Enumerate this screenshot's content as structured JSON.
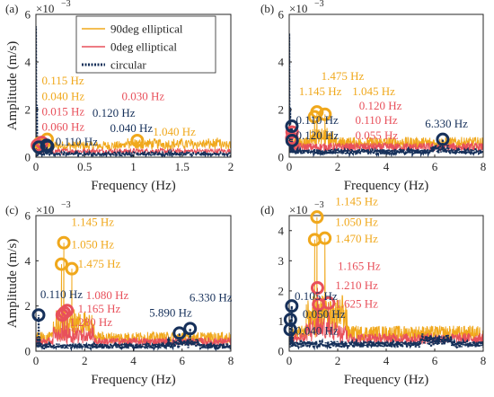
{
  "legend": {
    "entries": [
      {
        "label": "90deg elliptical",
        "color": "#F0A81C",
        "dash": false
      },
      {
        "label": "0deg elliptical",
        "color": "#E8505B",
        "dash": false
      },
      {
        "label": "circular",
        "color": "#16305A",
        "dash": true
      }
    ]
  },
  "colors": {
    "ell90": "#F0A81C",
    "ell0": "#E8505B",
    "circ": "#16305A",
    "axis": "#262626"
  },
  "chart_data": [
    {
      "panel": "(a)",
      "type": "line",
      "xlabel": "Frequency (Hz)",
      "ylabel": "Amplitude (m/s)",
      "exponent": "×10",
      "exponent_power": "−3",
      "xlim": [
        0,
        2
      ],
      "ylim": [
        0,
        6
      ],
      "xticks": [
        0,
        0.5,
        1,
        1.5,
        2
      ],
      "xtick_labels": [
        "0",
        "0.5",
        "1",
        "1.5",
        "2"
      ],
      "yticks": [
        0,
        2,
        4,
        6
      ],
      "ytick_labels": [
        "0",
        "2",
        "4",
        "6"
      ],
      "markers": [
        {
          "series": "ell90",
          "x": 0.115,
          "y": 0.75
        },
        {
          "series": "ell90",
          "x": 0.04,
          "y": 0.6
        },
        {
          "series": "ell90",
          "x": 1.04,
          "y": 0.7
        },
        {
          "series": "ell0",
          "x": 0.015,
          "y": 0.5
        },
        {
          "series": "ell0",
          "x": 0.06,
          "y": 0.62
        },
        {
          "series": "circ",
          "x": 0.03,
          "y": 0.42
        },
        {
          "series": "circ",
          "x": 0.11,
          "y": 0.5
        },
        {
          "series": "circ",
          "x": 0.12,
          "y": 0.45
        }
      ],
      "annotations": [
        {
          "series": "ell90",
          "text": "0.115 Hz",
          "x": 0.06,
          "y": 3.05
        },
        {
          "series": "ell90",
          "text": "0.040 Hz",
          "x": 0.06,
          "y": 2.4
        },
        {
          "series": "ell0",
          "text": "0.015 Hz",
          "x": 0.06,
          "y": 1.75
        },
        {
          "series": "ell0",
          "text": "0.060 Hz",
          "x": 0.06,
          "y": 1.12
        },
        {
          "series": "circ",
          "text": "0.110 Hz",
          "x": 0.2,
          "y": 0.5
        },
        {
          "series": "ell0",
          "text": "0.030 Hz",
          "x": 0.88,
          "y": 2.4
        },
        {
          "series": "circ",
          "text": "0.120 Hz",
          "x": 0.58,
          "y": 1.7
        },
        {
          "series": "circ",
          "text": "0.040 Hz",
          "x": 0.76,
          "y": 1.05
        },
        {
          "series": "ell90",
          "text": "1.040 Hz",
          "x": 1.2,
          "y": 0.9
        }
      ],
      "peaks": {
        "ell90": [
          [
            0.04,
            0.6
          ],
          [
            0.115,
            0.75
          ],
          [
            1.04,
            0.7
          ]
        ],
        "ell0": [
          [
            0.015,
            0.5
          ],
          [
            0.06,
            0.62
          ]
        ],
        "circ": [
          [
            0.0,
            5.5
          ],
          [
            0.03,
            0.42
          ],
          [
            0.11,
            0.5
          ]
        ]
      }
    },
    {
      "panel": "(b)",
      "type": "line",
      "xlabel": "Frequency (Hz)",
      "ylabel": "",
      "exponent": "×10",
      "exponent_power": "−3",
      "xlim": [
        0,
        8
      ],
      "ylim": [
        0,
        6
      ],
      "xticks": [
        0,
        2,
        4,
        6,
        8
      ],
      "xtick_labels": [
        "0",
        "2",
        "4",
        "6",
        "8"
      ],
      "yticks": [
        0,
        2,
        4,
        6
      ],
      "ytick_labels": [
        "0",
        "2",
        "4",
        "6"
      ],
      "markers": [
        {
          "series": "ell90",
          "x": 1.475,
          "y": 1.8
        },
        {
          "series": "ell90",
          "x": 1.145,
          "y": 1.9
        },
        {
          "series": "ell90",
          "x": 1.045,
          "y": 1.7
        },
        {
          "series": "ell0",
          "x": 0.12,
          "y": 1.05
        },
        {
          "series": "ell0",
          "x": 0.11,
          "y": 0.8
        },
        {
          "series": "circ",
          "x": 0.11,
          "y": 1.3
        },
        {
          "series": "circ",
          "x": 0.12,
          "y": 0.7
        },
        {
          "series": "circ",
          "x": 6.33,
          "y": 0.75
        }
      ],
      "annotations": [
        {
          "series": "ell90",
          "text": "1.475 Hz",
          "x": 1.32,
          "y": 3.25
        },
        {
          "series": "ell90",
          "text": "1.145 Hz",
          "x": 0.4,
          "y": 2.6
        },
        {
          "series": "ell90",
          "text": "1.045 Hz",
          "x": 2.6,
          "y": 2.6
        },
        {
          "series": "ell0",
          "text": "0.120 Hz",
          "x": 2.88,
          "y": 2.0
        },
        {
          "series": "circ",
          "text": "0.110 Hz",
          "x": 0.28,
          "y": 1.4
        },
        {
          "series": "ell0",
          "text": "0.110 Hz",
          "x": 2.72,
          "y": 1.4
        },
        {
          "series": "circ",
          "text": "0.120 Hz",
          "x": 0.28,
          "y": 0.75
        },
        {
          "series": "ell0",
          "text": "0.055 Hz",
          "x": 2.72,
          "y": 0.75
        },
        {
          "series": "circ",
          "text": "6.330 Hz",
          "x": 5.6,
          "y": 1.25
        }
      ],
      "peaks": {
        "ell90": [
          [
            1.045,
            1.7
          ],
          [
            1.145,
            1.9
          ],
          [
            1.475,
            1.8
          ]
        ],
        "ell0": [
          [
            0.11,
            0.8
          ],
          [
            0.12,
            1.05
          ]
        ],
        "circ": [
          [
            0.0,
            5.2
          ],
          [
            0.11,
            1.3
          ],
          [
            6.33,
            0.75
          ]
        ]
      }
    },
    {
      "panel": "(c)",
      "type": "line",
      "xlabel": "Frequency (Hz)",
      "ylabel": "Amplitude (m/s)",
      "exponent": "×10",
      "exponent_power": "−3",
      "xlim": [
        0,
        8
      ],
      "ylim": [
        0,
        6
      ],
      "xticks": [
        0,
        2,
        4,
        6,
        8
      ],
      "xtick_labels": [
        "0",
        "2",
        "4",
        "6",
        "8"
      ],
      "yticks": [
        0,
        2,
        4,
        6
      ],
      "ytick_labels": [
        "0",
        "2",
        "4",
        "6"
      ],
      "markers": [
        {
          "series": "ell90",
          "x": 1.145,
          "y": 4.8
        },
        {
          "series": "ell90",
          "x": 1.05,
          "y": 3.85
        },
        {
          "series": "ell90",
          "x": 1.475,
          "y": 3.65
        },
        {
          "series": "ell0",
          "x": 1.08,
          "y": 1.6
        },
        {
          "series": "ell0",
          "x": 1.165,
          "y": 1.7
        },
        {
          "series": "ell0",
          "x": 1.28,
          "y": 1.8
        },
        {
          "series": "circ",
          "x": 0.11,
          "y": 1.6
        },
        {
          "series": "circ",
          "x": 5.89,
          "y": 0.8
        },
        {
          "series": "circ",
          "x": 6.33,
          "y": 1.0
        }
      ],
      "annotations": [
        {
          "series": "ell90",
          "text": "1.145 Hz",
          "x": 1.45,
          "y": 5.55
        },
        {
          "series": "ell90",
          "text": "1.050 Hz",
          "x": 1.45,
          "y": 4.55
        },
        {
          "series": "ell90",
          "text": "1.475 Hz",
          "x": 1.72,
          "y": 3.7
        },
        {
          "series": "circ",
          "text": "0.110 Hz",
          "x": 0.18,
          "y": 2.35
        },
        {
          "series": "ell0",
          "text": "1.080 Hz",
          "x": 2.05,
          "y": 2.3
        },
        {
          "series": "ell0",
          "text": "1.165 Hz",
          "x": 1.72,
          "y": 1.7
        },
        {
          "series": "ell0",
          "text": "1.280 Hz",
          "x": 1.38,
          "y": 1.12
        },
        {
          "series": "circ",
          "text": "6.330 Hz",
          "x": 6.3,
          "y": 2.2
        },
        {
          "series": "circ",
          "text": "5.890 Hz",
          "x": 4.65,
          "y": 1.52
        }
      ],
      "peaks": {
        "ell90": [
          [
            1.05,
            3.85
          ],
          [
            1.145,
            4.8
          ],
          [
            1.475,
            3.65
          ]
        ],
        "ell0": [
          [
            1.08,
            1.6
          ],
          [
            1.165,
            1.7
          ],
          [
            1.28,
            1.8
          ]
        ],
        "circ": [
          [
            0.11,
            1.6
          ],
          [
            5.89,
            0.8
          ],
          [
            6.33,
            1.0
          ]
        ]
      }
    },
    {
      "panel": "(d)",
      "type": "line",
      "xlabel": "Frequency (Hz)",
      "ylabel": "",
      "exponent": "×10",
      "exponent_power": "−3",
      "xlim": [
        0,
        8
      ],
      "ylim": [
        0,
        4.5
      ],
      "xticks": [
        0,
        2,
        4,
        6,
        8
      ],
      "xtick_labels": [
        "0",
        "2",
        "4",
        "6",
        "8"
      ],
      "yticks": [
        0,
        1,
        2,
        3,
        4
      ],
      "ytick_labels": [
        "0",
        "1",
        "2",
        "3",
        "4"
      ],
      "markers": [
        {
          "series": "ell90",
          "x": 1.145,
          "y": 4.45
        },
        {
          "series": "ell90",
          "x": 1.05,
          "y": 3.7
        },
        {
          "series": "ell90",
          "x": 1.47,
          "y": 3.75
        },
        {
          "series": "ell0",
          "x": 1.165,
          "y": 2.1
        },
        {
          "series": "ell0",
          "x": 1.21,
          "y": 1.55
        },
        {
          "series": "ell0",
          "x": 1.625,
          "y": 1.6
        },
        {
          "series": "circ",
          "x": 0.105,
          "y": 1.5
        },
        {
          "series": "circ",
          "x": 0.05,
          "y": 1.05
        },
        {
          "series": "circ",
          "x": 0.04,
          "y": 0.72
        }
      ],
      "annotations": [
        {
          "series": "ell90",
          "text": "1.145 Hz",
          "x": 1.9,
          "y": 4.85
        },
        {
          "series": "ell90",
          "text": "1.050 Hz",
          "x": 1.9,
          "y": 4.15
        },
        {
          "series": "ell90",
          "text": "1.470 Hz",
          "x": 1.9,
          "y": 3.6
        },
        {
          "series": "ell0",
          "text": "1.165 Hz",
          "x": 2.0,
          "y": 2.7
        },
        {
          "series": "ell0",
          "text": "1.210 Hz",
          "x": 1.9,
          "y": 2.05
        },
        {
          "series": "ell0",
          "text": "1.625 Hz",
          "x": 1.9,
          "y": 1.45
        },
        {
          "series": "circ",
          "text": "0.105 Hz",
          "x": 0.22,
          "y": 1.7
        },
        {
          "series": "circ",
          "text": "0.050 Hz",
          "x": 0.55,
          "y": 1.1
        },
        {
          "series": "circ",
          "text": "0.040 Hz",
          "x": 0.26,
          "y": 0.55
        }
      ],
      "peaks": {
        "ell90": [
          [
            1.05,
            3.7
          ],
          [
            1.145,
            4.45
          ],
          [
            1.47,
            3.75
          ]
        ],
        "ell0": [
          [
            1.165,
            2.1
          ],
          [
            1.21,
            1.55
          ],
          [
            1.625,
            1.6
          ]
        ],
        "circ": [
          [
            0.04,
            0.72
          ],
          [
            0.05,
            1.05
          ],
          [
            0.105,
            1.5
          ]
        ]
      }
    }
  ]
}
